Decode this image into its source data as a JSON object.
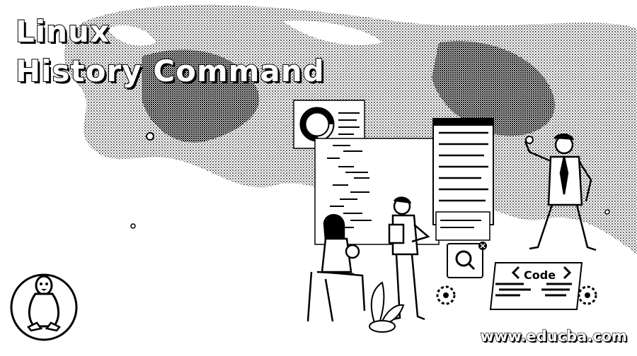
{
  "title_line1": "Linux",
  "title_line2": "History Command",
  "code_label": "Code",
  "site_url": "www.educba.com",
  "icons": [
    "linux-penguin-icon",
    "donut-chart-icon",
    "search-icon",
    "close-icon",
    "code-brackets-icon",
    "gear-icon"
  ],
  "colors": {
    "ink": "#000000",
    "paper": "#ffffff"
  }
}
